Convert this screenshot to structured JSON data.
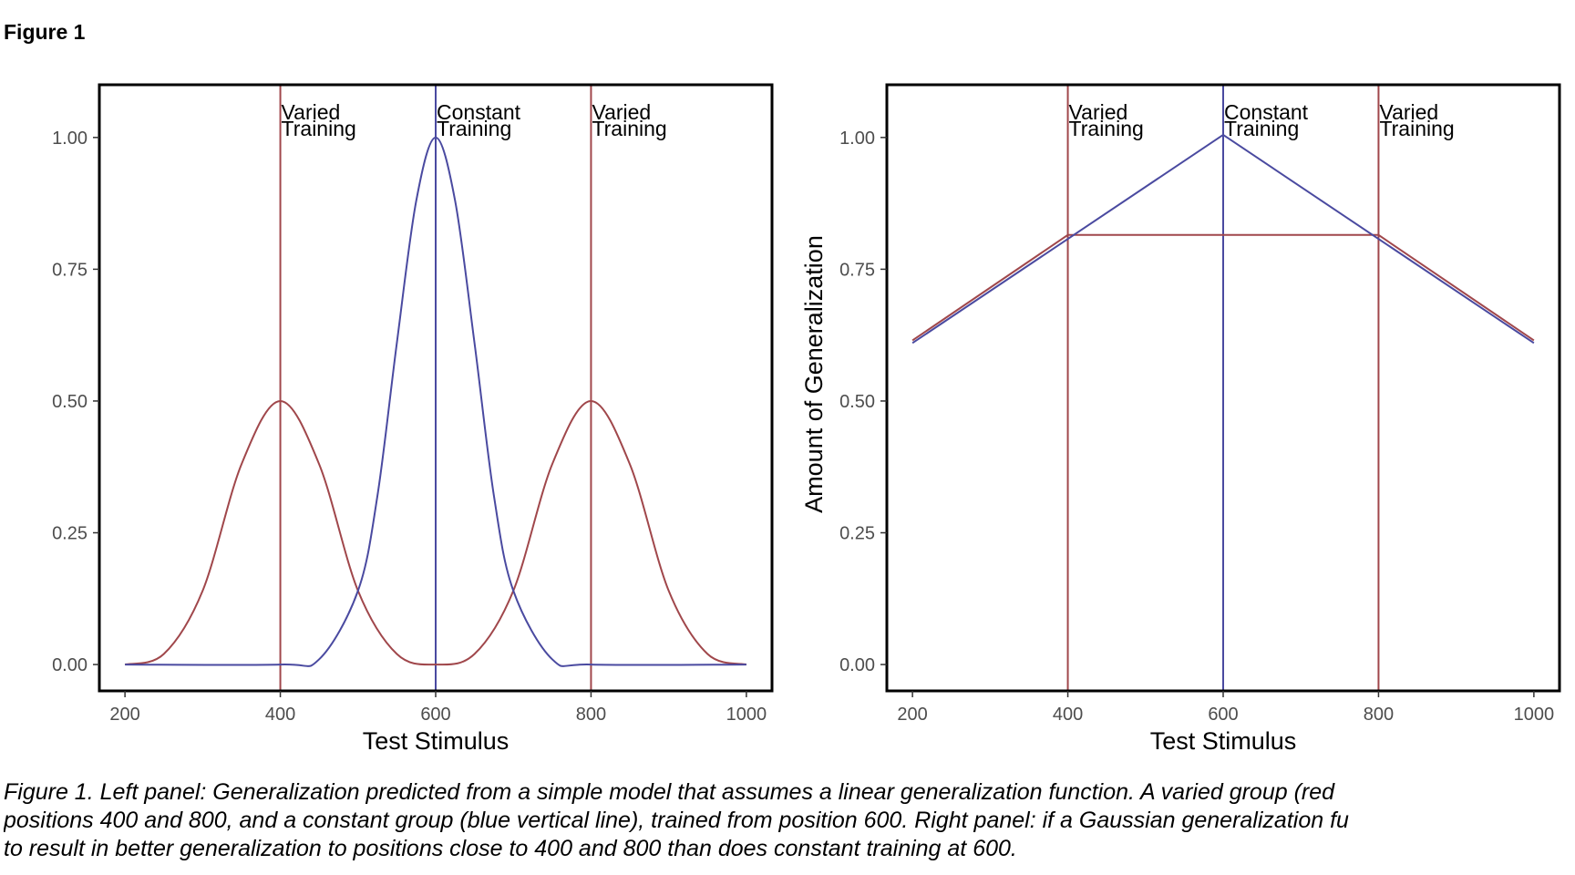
{
  "figure": {
    "title": "Figure 1",
    "caption_lines": [
      "Figure 1. Left panel: Generalization predicted from a simple model that assumes a linear generalization function. A varied group (red",
      "positions 400 and 800, and a constant group (blue vertical line), trained from position 600. Right panel: if a Gaussian generalization fu",
      "to result in better generalization to positions close to 400 and 800 than does constant training at 600."
    ]
  },
  "colors": {
    "varied": "#a0474b",
    "constant": "#4a4aa0",
    "axis": "#000000",
    "tick_text": "#4d4d4d"
  },
  "chart_data": [
    {
      "type": "line",
      "panel": "left",
      "xlabel": "Test Stimulus",
      "ylabel": "",
      "xlim": [
        200,
        1000
      ],
      "ylim": [
        0,
        1
      ],
      "xticks": [
        "200",
        "400",
        "600",
        "800",
        "1000"
      ],
      "yticks": [
        "0.00",
        "0.25",
        "0.50",
        "0.75",
        "1.00"
      ],
      "grid": false,
      "vlines": [
        {
          "x": 400,
          "group": "varied",
          "label_lines": [
            "Varied",
            "Training"
          ]
        },
        {
          "x": 600,
          "group": "constant",
          "label_lines": [
            "Constant",
            "Training"
          ]
        },
        {
          "x": 800,
          "group": "varied",
          "label_lines": [
            "Varied",
            "Training"
          ]
        }
      ],
      "series": [
        {
          "group": "varied",
          "x": [
            200,
            250,
            300,
            350,
            400,
            450,
            500,
            550,
            600,
            650,
            700,
            750,
            800,
            850,
            900,
            950,
            1000
          ],
          "y": [
            0.0,
            0.02,
            0.14,
            0.38,
            0.5,
            0.38,
            0.14,
            0.02,
            0.0,
            0.02,
            0.14,
            0.38,
            0.5,
            0.38,
            0.14,
            0.02,
            0.0
          ]
        },
        {
          "group": "constant",
          "x": [
            200,
            400,
            450,
            500,
            525,
            550,
            575,
            600,
            625,
            650,
            675,
            700,
            750,
            800,
            1000
          ],
          "y": [
            0.0,
            0.0,
            0.01,
            0.14,
            0.32,
            0.61,
            0.88,
            1.0,
            0.88,
            0.61,
            0.32,
            0.14,
            0.01,
            0.0,
            0.0
          ]
        }
      ]
    },
    {
      "type": "line",
      "panel": "right",
      "xlabel": "Test Stimulus",
      "ylabel": "Amount of Generalization",
      "xlim": [
        200,
        1000
      ],
      "ylim": [
        0,
        1
      ],
      "xticks": [
        "200",
        "400",
        "600",
        "800",
        "1000"
      ],
      "yticks": [
        "0.00",
        "0.25",
        "0.50",
        "0.75",
        "1.00"
      ],
      "grid": false,
      "vlines": [
        {
          "x": 400,
          "group": "varied",
          "label_lines": [
            "Varied",
            "Training"
          ]
        },
        {
          "x": 600,
          "group": "constant",
          "label_lines": [
            "Constant",
            "Training"
          ]
        },
        {
          "x": 800,
          "group": "varied",
          "label_lines": [
            "Varied",
            "Training"
          ]
        }
      ],
      "series": [
        {
          "group": "varied",
          "x": [
            200,
            400,
            800,
            1000
          ],
          "y": [
            0.615,
            0.815,
            0.815,
            0.615
          ]
        },
        {
          "group": "constant",
          "x": [
            200,
            600,
            1000
          ],
          "y": [
            0.61,
            1.005,
            0.61
          ]
        }
      ]
    }
  ]
}
